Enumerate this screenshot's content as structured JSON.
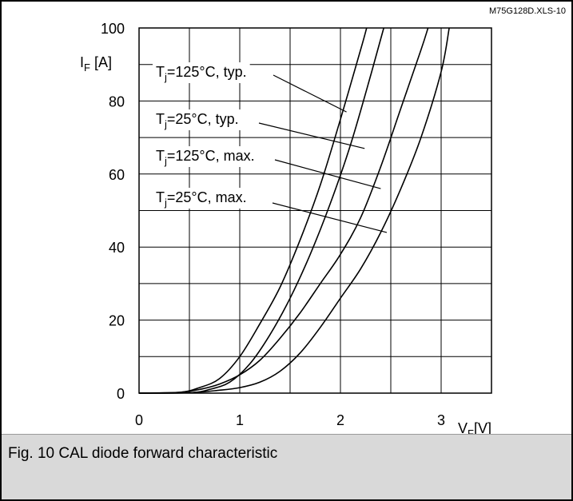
{
  "figure": {
    "source_tag": "M75G128D.XLS-10",
    "caption": "Fig. 10 CAL diode forward characteristic"
  },
  "chart_data": {
    "type": "line",
    "title": "",
    "xlabel_main": "V",
    "xlabel_sub": "F",
    "xlabel_unit": "[V]",
    "ylabel_main": "I",
    "ylabel_sub": "F",
    "ylabel_unit": " [A]",
    "xlim": [
      0,
      3.5
    ],
    "ylim": [
      0,
      100
    ],
    "x_ticks": [
      0,
      1,
      2,
      3
    ],
    "y_ticks": [
      0,
      20,
      40,
      60,
      80,
      100
    ],
    "x_gridlines": [
      0.5,
      1,
      1.5,
      2,
      2.5,
      3,
      3.5
    ],
    "y_gridlines": [
      10,
      20,
      30,
      40,
      50,
      60,
      70,
      80,
      90,
      100
    ],
    "grid": true,
    "series": [
      {
        "name_pre": "T",
        "name_sub": "j",
        "name_post": "=125°C, typ.",
        "points": [
          [
            0,
            0
          ],
          [
            0.4,
            0.2
          ],
          [
            0.6,
            1.5
          ],
          [
            0.8,
            4
          ],
          [
            1.0,
            10
          ],
          [
            1.2,
            19
          ],
          [
            1.4,
            29
          ],
          [
            1.6,
            42
          ],
          [
            1.8,
            57
          ],
          [
            2.0,
            75
          ],
          [
            2.2,
            94
          ],
          [
            2.26,
            100
          ]
        ],
        "label_anchor": [
          2.06,
          77
        ]
      },
      {
        "name_pre": "T",
        "name_sub": "j",
        "name_post": "=25°C, typ.",
        "points": [
          [
            0,
            0
          ],
          [
            0.5,
            0.1
          ],
          [
            0.7,
            1
          ],
          [
            0.9,
            3
          ],
          [
            1.1,
            8
          ],
          [
            1.3,
            16
          ],
          [
            1.5,
            26
          ],
          [
            1.7,
            38
          ],
          [
            1.9,
            52
          ],
          [
            2.1,
            68
          ],
          [
            2.3,
            87
          ],
          [
            2.43,
            100
          ]
        ],
        "label_anchor": [
          2.24,
          67
        ]
      },
      {
        "name_pre": "T",
        "name_sub": "j",
        "name_post": "=125°C, max.",
        "points": [
          [
            0,
            0
          ],
          [
            0.4,
            0.2
          ],
          [
            0.6,
            1
          ],
          [
            0.8,
            2.5
          ],
          [
            1.0,
            5
          ],
          [
            1.2,
            9
          ],
          [
            1.4,
            15
          ],
          [
            1.6,
            22
          ],
          [
            1.8,
            30
          ],
          [
            2.0,
            38
          ],
          [
            2.2,
            48
          ],
          [
            2.4,
            62
          ],
          [
            2.6,
            78
          ],
          [
            2.8,
            94
          ],
          [
            2.87,
            100
          ]
        ],
        "label_anchor": [
          2.4,
          56
        ]
      },
      {
        "name_pre": "T",
        "name_sub": "j",
        "name_post": "=25°C, max.",
        "points": [
          [
            0,
            0
          ],
          [
            0.5,
            0.1
          ],
          [
            0.8,
            0.8
          ],
          [
            1.0,
            1.5
          ],
          [
            1.2,
            3
          ],
          [
            1.4,
            6
          ],
          [
            1.6,
            11
          ],
          [
            1.8,
            18
          ],
          [
            2.0,
            26
          ],
          [
            2.2,
            34
          ],
          [
            2.4,
            44
          ],
          [
            2.6,
            56
          ],
          [
            2.8,
            70
          ],
          [
            3.0,
            88
          ],
          [
            3.08,
            100
          ]
        ],
        "label_anchor": [
          2.46,
          44
        ]
      }
    ]
  }
}
